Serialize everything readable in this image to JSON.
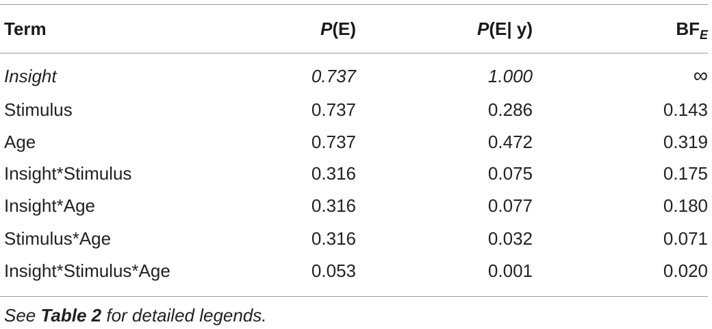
{
  "table": {
    "header": {
      "term": "Term",
      "pe_italic": "P",
      "pe_rest": "(E)",
      "pey_italic": "P",
      "pey_rest": "(E| y)",
      "bf_main": "BF",
      "bf_sub": "E"
    },
    "rows": [
      {
        "term": "Insight",
        "pe": "0.737",
        "pey": "1.000",
        "bf": "∞",
        "italic": true
      },
      {
        "term": "Stimulus",
        "pe": "0.737",
        "pey": "0.286",
        "bf": "0.143"
      },
      {
        "term": "Age",
        "pe": "0.737",
        "pey": "0.472",
        "bf": "0.319"
      },
      {
        "term": "Insight*Stimulus",
        "pe": "0.316",
        "pey": "0.075",
        "bf": "0.175"
      },
      {
        "term": "Insight*Age",
        "pe": "0.316",
        "pey": "0.077",
        "bf": "0.180"
      },
      {
        "term": "Stimulus*Age",
        "pe": "0.316",
        "pey": "0.032",
        "bf": "0.071"
      },
      {
        "term": "Insight*Stimulus*Age",
        "pe": "0.053",
        "pey": "0.001",
        "bf": "0.020"
      }
    ]
  },
  "footnote": {
    "prefix": "See ",
    "ref": "Table 2",
    "suffix": " for detailed legends."
  }
}
